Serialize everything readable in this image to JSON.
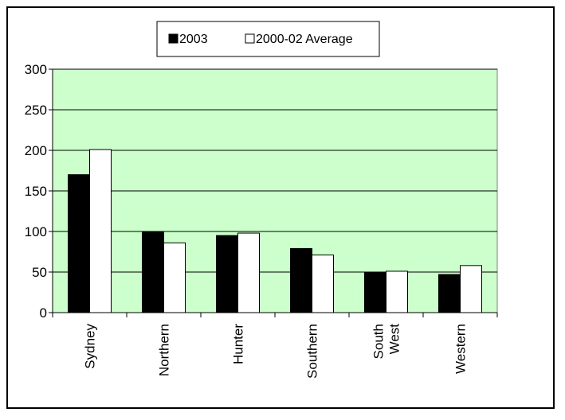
{
  "chart_data": {
    "type": "bar",
    "categories": [
      "Sydney",
      "Northern",
      "Hunter",
      "Southern",
      "South West",
      "Western"
    ],
    "category_lines": [
      [
        "Sydney"
      ],
      [
        "Northern"
      ],
      [
        "Hunter"
      ],
      [
        "Southern"
      ],
      [
        "South",
        "West"
      ],
      [
        "Western"
      ]
    ],
    "series": [
      {
        "name": "2003",
        "values": [
          170,
          100,
          95,
          79,
          50,
          47
        ],
        "color": "#000000"
      },
      {
        "name": "2000-02 Average",
        "values": [
          201,
          86,
          98,
          71,
          51,
          58
        ],
        "color": "#ffffff"
      }
    ],
    "ylim": [
      0,
      300
    ],
    "yticks": [
      0,
      50,
      100,
      150,
      200,
      250,
      300
    ],
    "grid": true,
    "plot_background": "#ccffcc",
    "legend_position": "top-center",
    "title": "",
    "xlabel": "",
    "ylabel": ""
  }
}
